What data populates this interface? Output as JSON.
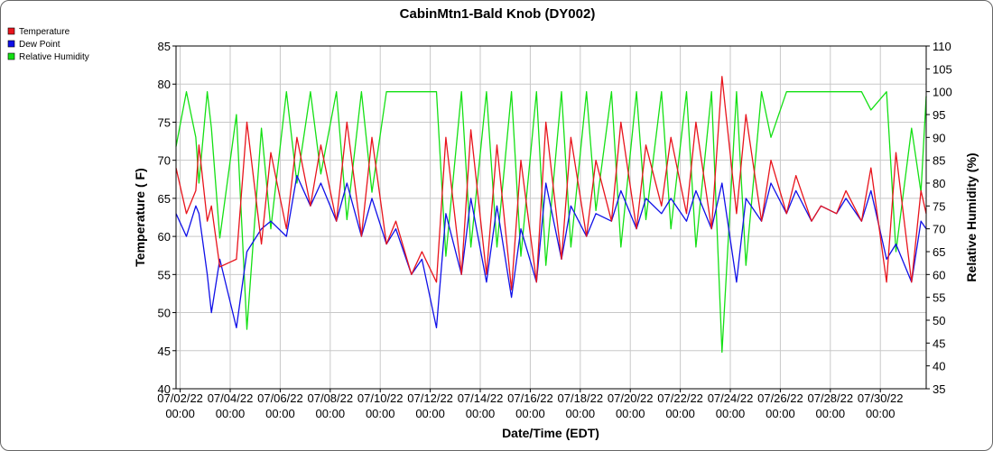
{
  "chart_data": {
    "type": "line",
    "title": "CabinMtn1-Bald Knob (DY002)",
    "xlabel": "Date/Time (EDT)",
    "ylabel": "Temperature ( F)",
    "y2label": "Relative Humidity (%)",
    "xlim": [
      "07/01/22 20:00",
      "07/31/22 20:00"
    ],
    "ylim": [
      40,
      85
    ],
    "y2lim": [
      35,
      110
    ],
    "grid": true,
    "legend_position": "top-left",
    "x_ticks": [
      {
        "date": "07/02/22",
        "time": "00:00"
      },
      {
        "date": "07/04/22",
        "time": "00:00"
      },
      {
        "date": "07/06/22",
        "time": "00:00"
      },
      {
        "date": "07/08/22",
        "time": "00:00"
      },
      {
        "date": "07/10/22",
        "time": "00:00"
      },
      {
        "date": "07/12/22",
        "time": "00:00"
      },
      {
        "date": "07/14/22",
        "time": "00:00"
      },
      {
        "date": "07/16/22",
        "time": "00:00"
      },
      {
        "date": "07/18/22",
        "time": "00:00"
      },
      {
        "date": "07/20/22",
        "time": "00:00"
      },
      {
        "date": "07/22/22",
        "time": "00:00"
      },
      {
        "date": "07/24/22",
        "time": "00:00"
      },
      {
        "date": "07/26/22",
        "time": "00:00"
      },
      {
        "date": "07/28/22",
        "time": "00:00"
      },
      {
        "date": "07/30/22",
        "time": "00:00"
      }
    ],
    "y_ticks": [
      "40",
      "45",
      "50",
      "55",
      "60",
      "65",
      "70",
      "75",
      "80",
      "85"
    ],
    "y2_ticks": [
      "35",
      "40",
      "45",
      "50",
      "55",
      "60",
      "65",
      "70",
      "75",
      "80",
      "85",
      "90",
      "95",
      "100",
      "105",
      "110"
    ],
    "series": [
      {
        "name": "Temperature",
        "axis": "left",
        "color": "#e8141c",
        "x": [
          "07/01/22 20:00",
          "07/02/22 06:00",
          "07/02/22 15:00",
          "07/02/22 18:00",
          "07/03/22 02:00",
          "07/03/22 06:00",
          "07/03/22 14:00",
          "07/04/22 06:00",
          "07/04/22 16:00",
          "07/05/22 06:00",
          "07/05/22 15:00",
          "07/06/22 06:00",
          "07/06/22 16:00",
          "07/07/22 05:00",
          "07/07/22 15:00",
          "07/08/22 06:00",
          "07/08/22 16:00",
          "07/09/22 06:00",
          "07/09/22 16:00",
          "07/10/22 06:00",
          "07/10/22 15:00",
          "07/11/22 06:00",
          "07/11/22 16:00",
          "07/12/22 06:00",
          "07/12/22 15:00",
          "07/13/22 06:00",
          "07/13/22 15:00",
          "07/14/22 06:00",
          "07/14/22 16:00",
          "07/15/22 06:00",
          "07/15/22 15:00",
          "07/16/22 06:00",
          "07/16/22 15:00",
          "07/17/22 06:00",
          "07/17/22 15:00",
          "07/18/22 06:00",
          "07/18/22 15:00",
          "07/19/22 06:00",
          "07/19/22 15:00",
          "07/20/22 06:00",
          "07/20/22 15:00",
          "07/21/22 06:00",
          "07/21/22 15:00",
          "07/22/22 06:00",
          "07/22/22 15:00",
          "07/23/22 06:00",
          "07/23/22 16:00",
          "07/24/22 06:00",
          "07/24/22 15:00",
          "07/25/22 06:00",
          "07/25/22 15:00",
          "07/26/22 06:00",
          "07/26/22 15:00",
          "07/27/22 06:00",
          "07/27/22 15:00",
          "07/28/22 06:00",
          "07/28/22 15:00",
          "07/29/22 06:00",
          "07/29/22 15:00",
          "07/30/22 06:00",
          "07/30/22 15:00",
          "07/31/22 06:00",
          "07/31/22 15:00",
          "07/31/22 20:00"
        ],
        "values": [
          69,
          63,
          66,
          72,
          62,
          64,
          56,
          57,
          75,
          59,
          71,
          61,
          73,
          64,
          72,
          62,
          75,
          60,
          73,
          59,
          62,
          55,
          58,
          54,
          73,
          55,
          74,
          55,
          72,
          53,
          70,
          54,
          75,
          57,
          73,
          60,
          70,
          62,
          75,
          61,
          72,
          64,
          73,
          63,
          75,
          61,
          81,
          63,
          76,
          62,
          70,
          63,
          68,
          62,
          64,
          63,
          66,
          62,
          69,
          54,
          71,
          54,
          66,
          63
        ]
      },
      {
        "name": "Dew Point",
        "axis": "left",
        "color": "#1010e8",
        "x": [
          "07/01/22 20:00",
          "07/02/22 06:00",
          "07/02/22 15:00",
          "07/02/22 18:00",
          "07/03/22 02:00",
          "07/03/22 06:00",
          "07/03/22 14:00",
          "07/04/22 06:00",
          "07/04/22 16:00",
          "07/05/22 06:00",
          "07/05/22 15:00",
          "07/06/22 06:00",
          "07/06/22 16:00",
          "07/07/22 05:00",
          "07/07/22 15:00",
          "07/08/22 06:00",
          "07/08/22 16:00",
          "07/09/22 06:00",
          "07/09/22 16:00",
          "07/10/22 06:00",
          "07/10/22 15:00",
          "07/11/22 06:00",
          "07/11/22 16:00",
          "07/12/22 06:00",
          "07/12/22 15:00",
          "07/13/22 06:00",
          "07/13/22 15:00",
          "07/14/22 06:00",
          "07/14/22 16:00",
          "07/15/22 06:00",
          "07/15/22 15:00",
          "07/16/22 06:00",
          "07/16/22 15:00",
          "07/17/22 06:00",
          "07/17/22 15:00",
          "07/18/22 06:00",
          "07/18/22 15:00",
          "07/19/22 06:00",
          "07/19/22 15:00",
          "07/20/22 06:00",
          "07/20/22 15:00",
          "07/21/22 06:00",
          "07/21/22 15:00",
          "07/22/22 06:00",
          "07/22/22 15:00",
          "07/23/22 06:00",
          "07/23/22 16:00",
          "07/24/22 06:00",
          "07/24/22 15:00",
          "07/25/22 06:00",
          "07/25/22 15:00",
          "07/26/22 06:00",
          "07/26/22 15:00",
          "07/27/22 06:00",
          "07/27/22 15:00",
          "07/28/22 06:00",
          "07/28/22 15:00",
          "07/29/22 06:00",
          "07/29/22 15:00",
          "07/30/22 06:00",
          "07/30/22 15:00",
          "07/31/22 06:00",
          "07/31/22 15:00",
          "07/31/22 20:00"
        ],
        "values": [
          63,
          60,
          64,
          63,
          55,
          50,
          57,
          48,
          58,
          61,
          62,
          60,
          68,
          64,
          67,
          62,
          67,
          60,
          65,
          59,
          61,
          55,
          57,
          48,
          63,
          55,
          65,
          54,
          64,
          52,
          61,
          54,
          67,
          57,
          64,
          60,
          63,
          62,
          66,
          61,
          65,
          63,
          65,
          62,
          66,
          61,
          67,
          54,
          65,
          62,
          67,
          63,
          66,
          62,
          64,
          63,
          65,
          62,
          66,
          57,
          59,
          54,
          62,
          61
        ]
      },
      {
        "name": "Relative Humidity",
        "axis": "right",
        "color": "#14e014",
        "x": [
          "07/01/22 20:00",
          "07/02/22 06:00",
          "07/02/22 15:00",
          "07/02/22 18:00",
          "07/03/22 02:00",
          "07/03/22 06:00",
          "07/03/22 14:00",
          "07/04/22 06:00",
          "07/04/22 16:00",
          "07/05/22 06:00",
          "07/05/22 15:00",
          "07/06/22 06:00",
          "07/06/22 16:00",
          "07/07/22 05:00",
          "07/07/22 15:00",
          "07/08/22 06:00",
          "07/08/22 16:00",
          "07/09/22 06:00",
          "07/09/22 16:00",
          "07/10/22 06:00",
          "07/10/22 15:00",
          "07/11/22 06:00",
          "07/11/22 16:00",
          "07/12/22 06:00",
          "07/12/22 15:00",
          "07/13/22 06:00",
          "07/13/22 15:00",
          "07/14/22 06:00",
          "07/14/22 16:00",
          "07/15/22 06:00",
          "07/15/22 15:00",
          "07/16/22 06:00",
          "07/16/22 15:00",
          "07/17/22 06:00",
          "07/17/22 15:00",
          "07/18/22 06:00",
          "07/18/22 15:00",
          "07/19/22 06:00",
          "07/19/22 15:00",
          "07/20/22 06:00",
          "07/20/22 15:00",
          "07/21/22 06:00",
          "07/21/22 15:00",
          "07/22/22 06:00",
          "07/22/22 15:00",
          "07/23/22 06:00",
          "07/23/22 16:00",
          "07/24/22 06:00",
          "07/24/22 15:00",
          "07/25/22 06:00",
          "07/25/22 15:00",
          "07/26/22 06:00",
          "07/26/22 15:00",
          "07/27/22 06:00",
          "07/27/22 15:00",
          "07/28/22 06:00",
          "07/28/22 15:00",
          "07/29/22 06:00",
          "07/29/22 15:00",
          "07/30/22 06:00",
          "07/30/22 15:00",
          "07/31/22 06:00",
          "07/31/22 15:00",
          "07/31/22 20:00"
        ],
        "values": [
          88,
          100,
          90,
          80,
          100,
          92,
          68,
          95,
          48,
          92,
          70,
          100,
          80,
          100,
          82,
          100,
          72,
          100,
          78,
          100,
          100,
          100,
          100,
          100,
          64,
          100,
          66,
          100,
          66,
          100,
          64,
          100,
          62,
          100,
          66,
          100,
          74,
          100,
          66,
          100,
          72,
          100,
          70,
          100,
          66,
          100,
          43,
          100,
          62,
          100,
          90,
          100,
          100,
          100,
          100,
          100,
          100,
          100,
          96,
          100,
          65,
          92,
          78,
          99
        ]
      }
    ]
  }
}
